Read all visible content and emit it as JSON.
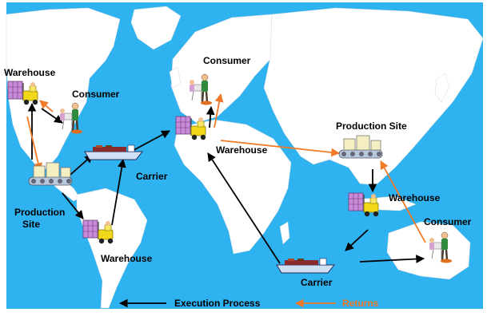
{
  "colors": {
    "ocean": "#2fb2f0",
    "land": "#ffffff",
    "execution_arrow": "#000000",
    "returns_arrow": "#f07a28",
    "returns_text": "#f07a28",
    "label_text": "#000000"
  },
  "nodes": {
    "warehouse_na": "Warehouse",
    "consumer_na": "Consumer",
    "production_site_na_line1": "Production",
    "production_site_na_line2": "Site",
    "carrier_atlantic": "Carrier",
    "warehouse_sa": "Warehouse",
    "consumer_eu": "Consumer",
    "warehouse_eu": "Warehouse",
    "production_site_asia": "Production Site",
    "warehouse_asia": "Warehouse",
    "consumer_au": "Consumer",
    "carrier_indian": "Carrier"
  },
  "legend": {
    "execution_label": "Execution Process",
    "returns_label": "Returns"
  },
  "icons": {
    "warehouse": "forklift-warehouse-icon",
    "consumer": "consumer-person-icon",
    "production": "production-conveyor-icon",
    "carrier": "cargo-ship-icon"
  }
}
